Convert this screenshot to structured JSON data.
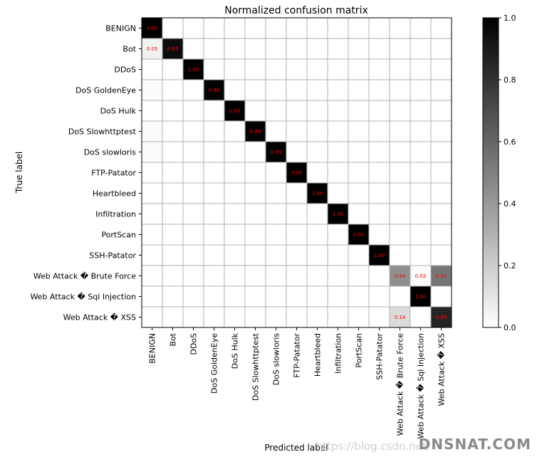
{
  "chart_data": {
    "type": "heatmap",
    "title": "Normalized confusion matrix",
    "xlabel": "Predicted label",
    "ylabel": "True label",
    "labels": [
      "BENIGN",
      "Bot",
      "DDoS",
      "DoS GoldenEye",
      "DoS Hulk",
      "DoS Slowhttptest",
      "DoS slowloris",
      "FTP-Patator",
      "Heartbleed",
      "Infiltration",
      "PortScan",
      "SSH-Patator",
      "Web Attack � Brute Force",
      "Web Attack � Sql Injection",
      "Web Attack � XSS"
    ],
    "matrix": [
      [
        1.0,
        0,
        0,
        0,
        0,
        0,
        0,
        0,
        0,
        0,
        0,
        0,
        0,
        0,
        0
      ],
      [
        0.05,
        0.95,
        0,
        0,
        0,
        0,
        0,
        0,
        0,
        0,
        0,
        0,
        0,
        0,
        0
      ],
      [
        0,
        0,
        1.0,
        0,
        0,
        0,
        0,
        0,
        0,
        0,
        0,
        0,
        0,
        0,
        0
      ],
      [
        0.01,
        0,
        0,
        0.99,
        0,
        0,
        0,
        0,
        0,
        0,
        0,
        0,
        0,
        0,
        0
      ],
      [
        0,
        0,
        0,
        0,
        1.0,
        0,
        0,
        0,
        0,
        0,
        0,
        0,
        0,
        0,
        0
      ],
      [
        0.01,
        0,
        0,
        0,
        0,
        0.99,
        0,
        0,
        0,
        0,
        0,
        0,
        0,
        0,
        0
      ],
      [
        0.01,
        0,
        0,
        0,
        0,
        0,
        0.99,
        0,
        0,
        0,
        0,
        0,
        0,
        0,
        0
      ],
      [
        0,
        0,
        0,
        0,
        0,
        0,
        0,
        1.0,
        0,
        0,
        0,
        0,
        0,
        0,
        0
      ],
      [
        0,
        0,
        0,
        0,
        0,
        0,
        0,
        0,
        1.0,
        0,
        0,
        0,
        0,
        0,
        0
      ],
      [
        0,
        0,
        0,
        0,
        0,
        0,
        0,
        0,
        0,
        1.0,
        0,
        0,
        0,
        0,
        0
      ],
      [
        0,
        0,
        0,
        0,
        0,
        0,
        0,
        0,
        0,
        0,
        1.0,
        0,
        0,
        0,
        0
      ],
      [
        0,
        0,
        0,
        0,
        0,
        0,
        0,
        0,
        0,
        0,
        0,
        1.0,
        0,
        0,
        0
      ],
      [
        0,
        0,
        0,
        0,
        0,
        0,
        0,
        0,
        0,
        0,
        0,
        0,
        0.44,
        0.02,
        0.54
      ],
      [
        0,
        0,
        0,
        0,
        0,
        0,
        0,
        0,
        0,
        0,
        0,
        0,
        0,
        1.0,
        0
      ],
      [
        0,
        0,
        0,
        0,
        0,
        0,
        0,
        0,
        0,
        0,
        0,
        0,
        0.14,
        0,
        0.86
      ]
    ],
    "annotations": [
      {
        "row": 0,
        "col": 0,
        "text": "1.00"
      },
      {
        "row": 1,
        "col": 0,
        "text": "0.05"
      },
      {
        "row": 1,
        "col": 1,
        "text": "0.95"
      },
      {
        "row": 2,
        "col": 2,
        "text": "1.00"
      },
      {
        "row": 3,
        "col": 3,
        "text": "0.99"
      },
      {
        "row": 4,
        "col": 4,
        "text": "1.00"
      },
      {
        "row": 5,
        "col": 5,
        "text": "0.99"
      },
      {
        "row": 6,
        "col": 6,
        "text": "0.99"
      },
      {
        "row": 7,
        "col": 7,
        "text": "1.00"
      },
      {
        "row": 8,
        "col": 8,
        "text": "1.00"
      },
      {
        "row": 9,
        "col": 9,
        "text": "1.00"
      },
      {
        "row": 10,
        "col": 10,
        "text": "1.00"
      },
      {
        "row": 11,
        "col": 11,
        "text": "1.00"
      },
      {
        "row": 12,
        "col": 12,
        "text": "0.44"
      },
      {
        "row": 12,
        "col": 13,
        "text": "0.02"
      },
      {
        "row": 12,
        "col": 14,
        "text": "0.54"
      },
      {
        "row": 13,
        "col": 13,
        "text": "1.00"
      },
      {
        "row": 14,
        "col": 12,
        "text": "0.14"
      },
      {
        "row": 14,
        "col": 14,
        "text": "0.86"
      }
    ],
    "annotation_color": "#ff0000",
    "colormap": "Greys",
    "vmin": 0.0,
    "vmax": 1.0,
    "colorbar_ticks": [
      "0.0",
      "0.2",
      "0.4",
      "0.6",
      "0.8",
      "1.0"
    ],
    "grid": true
  },
  "watermark": {
    "url": "https://blog.csdn.net/",
    "brand": "DNSNAT.COM"
  }
}
